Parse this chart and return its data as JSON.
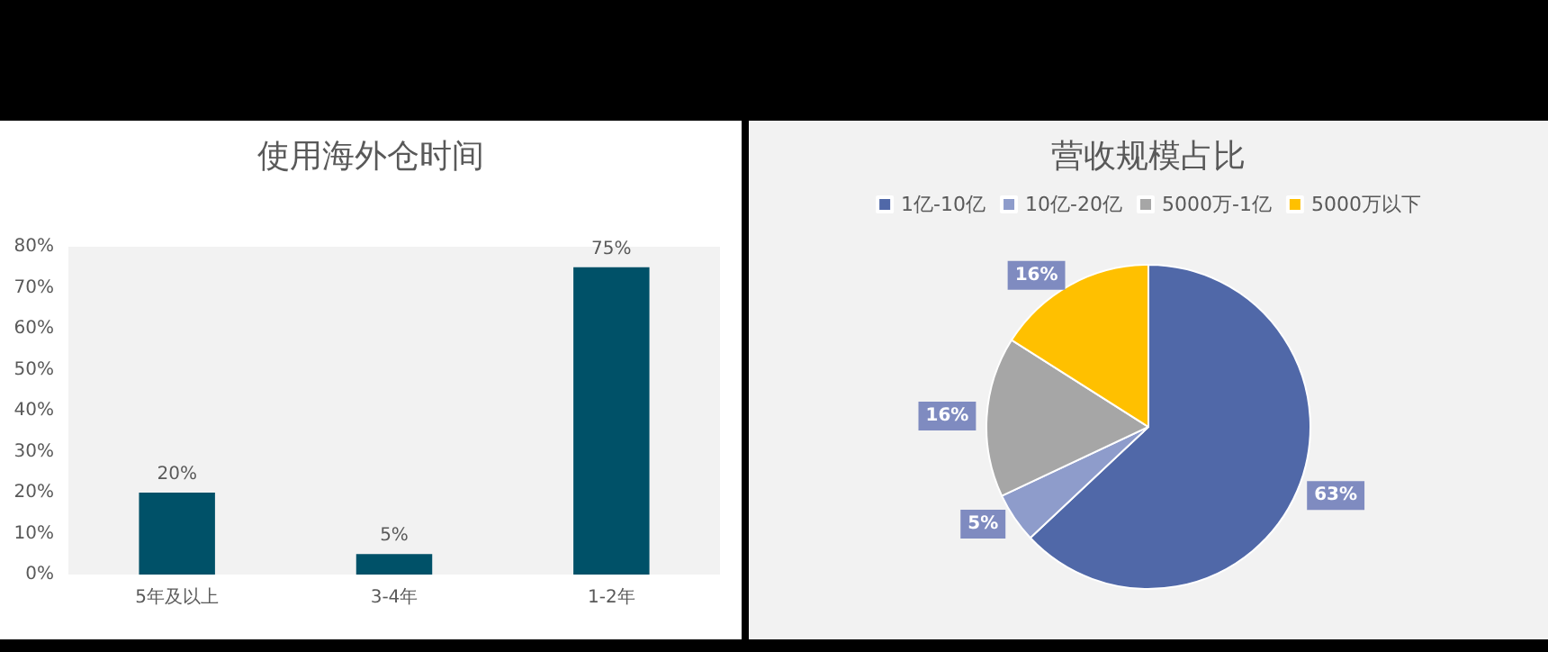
{
  "chart_data": [
    {
      "type": "bar",
      "title": "使用海外仓时间",
      "categories": [
        "5年及以上",
        "3-4年",
        "1-2年"
      ],
      "values": [
        20,
        5,
        75
      ],
      "color": "#005168",
      "ylim": [
        0,
        80
      ],
      "yticks": [
        {
          "value": 0,
          "label": "0%"
        },
        {
          "value": 10,
          "label": "10%"
        },
        {
          "value": 20,
          "label": "20%"
        },
        {
          "value": 30,
          "label": "30%"
        },
        {
          "value": 40,
          "label": "40%"
        },
        {
          "value": 50,
          "label": "50%"
        },
        {
          "value": 60,
          "label": "60%"
        },
        {
          "value": 70,
          "label": "70%"
        },
        {
          "value": 80,
          "label": "80%"
        }
      ],
      "value_labels": [
        "20%",
        "5%",
        "75%"
      ],
      "grid": false,
      "legend": false
    },
    {
      "type": "pie",
      "title": "营收规模占比",
      "categories": [
        "1亿-10亿",
        "10亿-20亿",
        "5000万-1亿",
        "5000万以下"
      ],
      "values": [
        63,
        5,
        16,
        16
      ],
      "colors": [
        "#5068a8",
        "#8e9ccb",
        "#a6a6a6",
        "#ffc000"
      ],
      "value_labels": [
        "63%",
        "5%",
        "16%",
        "16%"
      ],
      "legend": "top"
    }
  ]
}
